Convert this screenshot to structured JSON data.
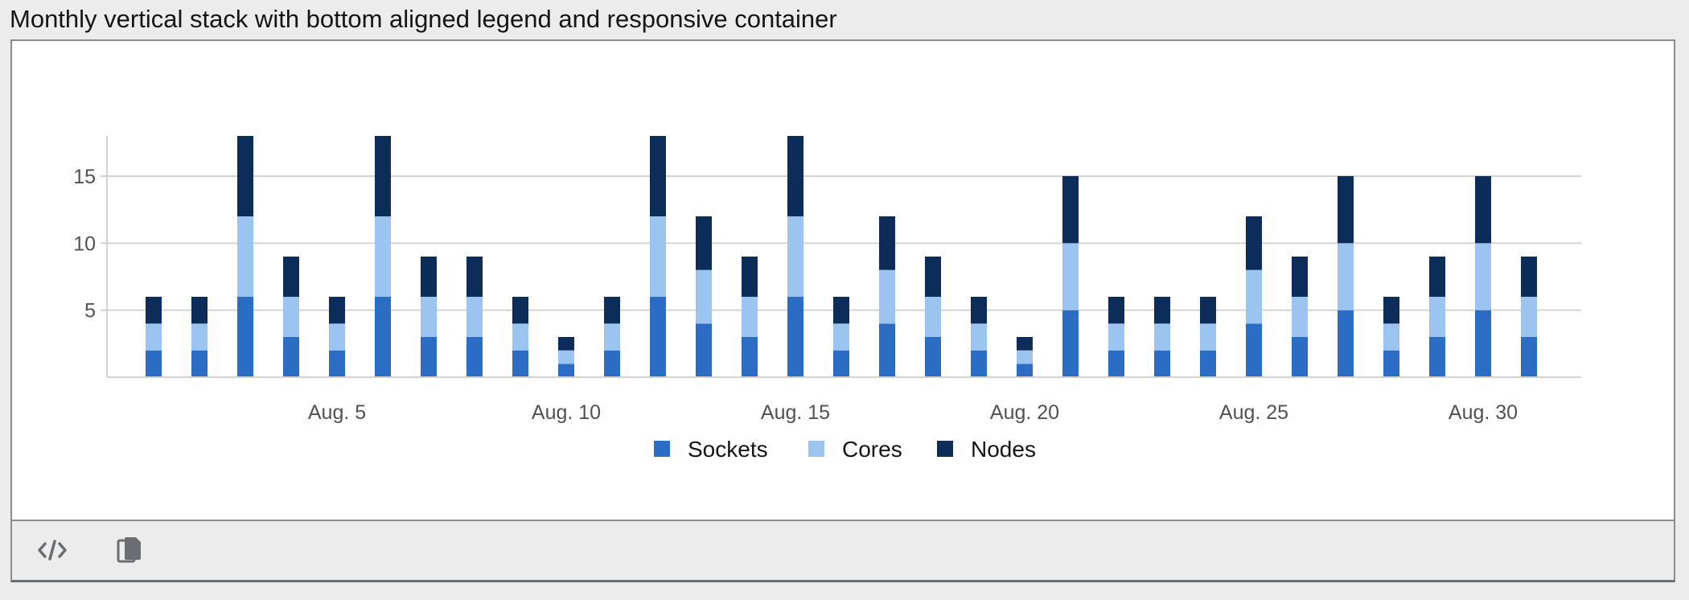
{
  "page": {
    "title": "Monthly vertical stack with bottom aligned legend and responsive container"
  },
  "toolbar": {
    "buttons": [
      {
        "name": "view-code-button",
        "icon": "code-icon"
      },
      {
        "name": "copy-code-button",
        "icon": "copy-icon"
      }
    ]
  },
  "colors": {
    "sockets": "#2b6cc4",
    "cores": "#9bc4f0",
    "nodes": "#0c2d5a"
  },
  "chart_data": {
    "type": "bar",
    "stacked": true,
    "title": "",
    "xlabel": "",
    "ylabel": "",
    "ylim": [
      0,
      18
    ],
    "yticks": [
      5,
      10,
      15
    ],
    "xtick_labels": [
      {
        "day": 5,
        "label": "Aug. 5"
      },
      {
        "day": 10,
        "label": "Aug. 10"
      },
      {
        "day": 15,
        "label": "Aug. 15"
      },
      {
        "day": 20,
        "label": "Aug. 20"
      },
      {
        "day": 25,
        "label": "Aug. 25"
      },
      {
        "day": 30,
        "label": "Aug. 30"
      }
    ],
    "days": [
      1,
      2,
      3,
      4,
      5,
      6,
      7,
      8,
      9,
      10,
      11,
      12,
      13,
      14,
      15,
      16,
      17,
      18,
      19,
      20,
      21,
      22,
      23,
      24,
      25,
      26,
      27,
      28,
      29,
      30,
      31
    ],
    "series": [
      {
        "name": "Sockets",
        "color": "#2b6cc4",
        "values": [
          2,
          2,
          6,
          3,
          2,
          6,
          3,
          3,
          2,
          1,
          2,
          6,
          4,
          3,
          6,
          2,
          4,
          3,
          2,
          1,
          5,
          2,
          2,
          2,
          4,
          3,
          5,
          2,
          3,
          5,
          3
        ]
      },
      {
        "name": "Cores",
        "color": "#9bc4f0",
        "values": [
          2,
          2,
          6,
          3,
          2,
          6,
          3,
          3,
          2,
          1,
          2,
          6,
          4,
          3,
          6,
          2,
          4,
          3,
          2,
          1,
          5,
          2,
          2,
          2,
          4,
          3,
          5,
          2,
          3,
          5,
          3
        ]
      },
      {
        "name": "Nodes",
        "color": "#0c2d5a",
        "values": [
          2,
          2,
          6,
          3,
          2,
          6,
          3,
          3,
          2,
          1,
          2,
          6,
          4,
          3,
          6,
          2,
          4,
          3,
          2,
          1,
          5,
          2,
          2,
          2,
          4,
          3,
          5,
          2,
          3,
          5,
          3
        ]
      }
    ],
    "grid": true,
    "legend_position": "bottom"
  }
}
